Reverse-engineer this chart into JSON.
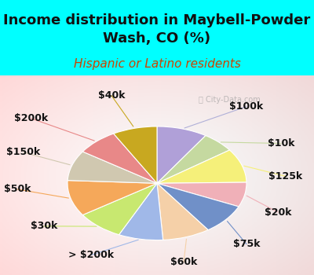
{
  "title": "Income distribution in Maybell-Powder\nWash, CO (%)",
  "subtitle": "Hispanic or Latino residents",
  "bg_cyan": "#00FFFF",
  "watermark": "ⓘ City-Data.com",
  "labels": [
    "$100k",
    "$10k",
    "$125k",
    "$20k",
    "$75k",
    "$60k",
    "> $200k",
    "$30k",
    "$50k",
    "$150k",
    "$200k",
    "$40k"
  ],
  "sizes": [
    8.5,
    5.5,
    9.0,
    6.5,
    8.0,
    8.0,
    7.5,
    8.0,
    9.5,
    8.0,
    7.0,
    7.5
  ],
  "colors": [
    "#b0a0d8",
    "#c5d9a0",
    "#f5f07a",
    "#f0b0b8",
    "#7090c8",
    "#f5d0a8",
    "#a0b8e8",
    "#c8e870",
    "#f5a85a",
    "#d0c8b0",
    "#e88888",
    "#c8a820"
  ],
  "line_colors": [
    "#b0b0d8",
    "#c5d9a0",
    "#f5f07a",
    "#f0b0b8",
    "#7090c8",
    "#f5d0a8",
    "#a0b8e8",
    "#c8e870",
    "#f5a85a",
    "#d0c8b0",
    "#e88888",
    "#c8a820"
  ],
  "startangle": 90,
  "counterclock": false,
  "title_fontsize": 13,
  "subtitle_fontsize": 11,
  "label_fontsize": 9,
  "subtitle_color": "#cc4400",
  "title_color": "#111111",
  "label_color": "#111111"
}
